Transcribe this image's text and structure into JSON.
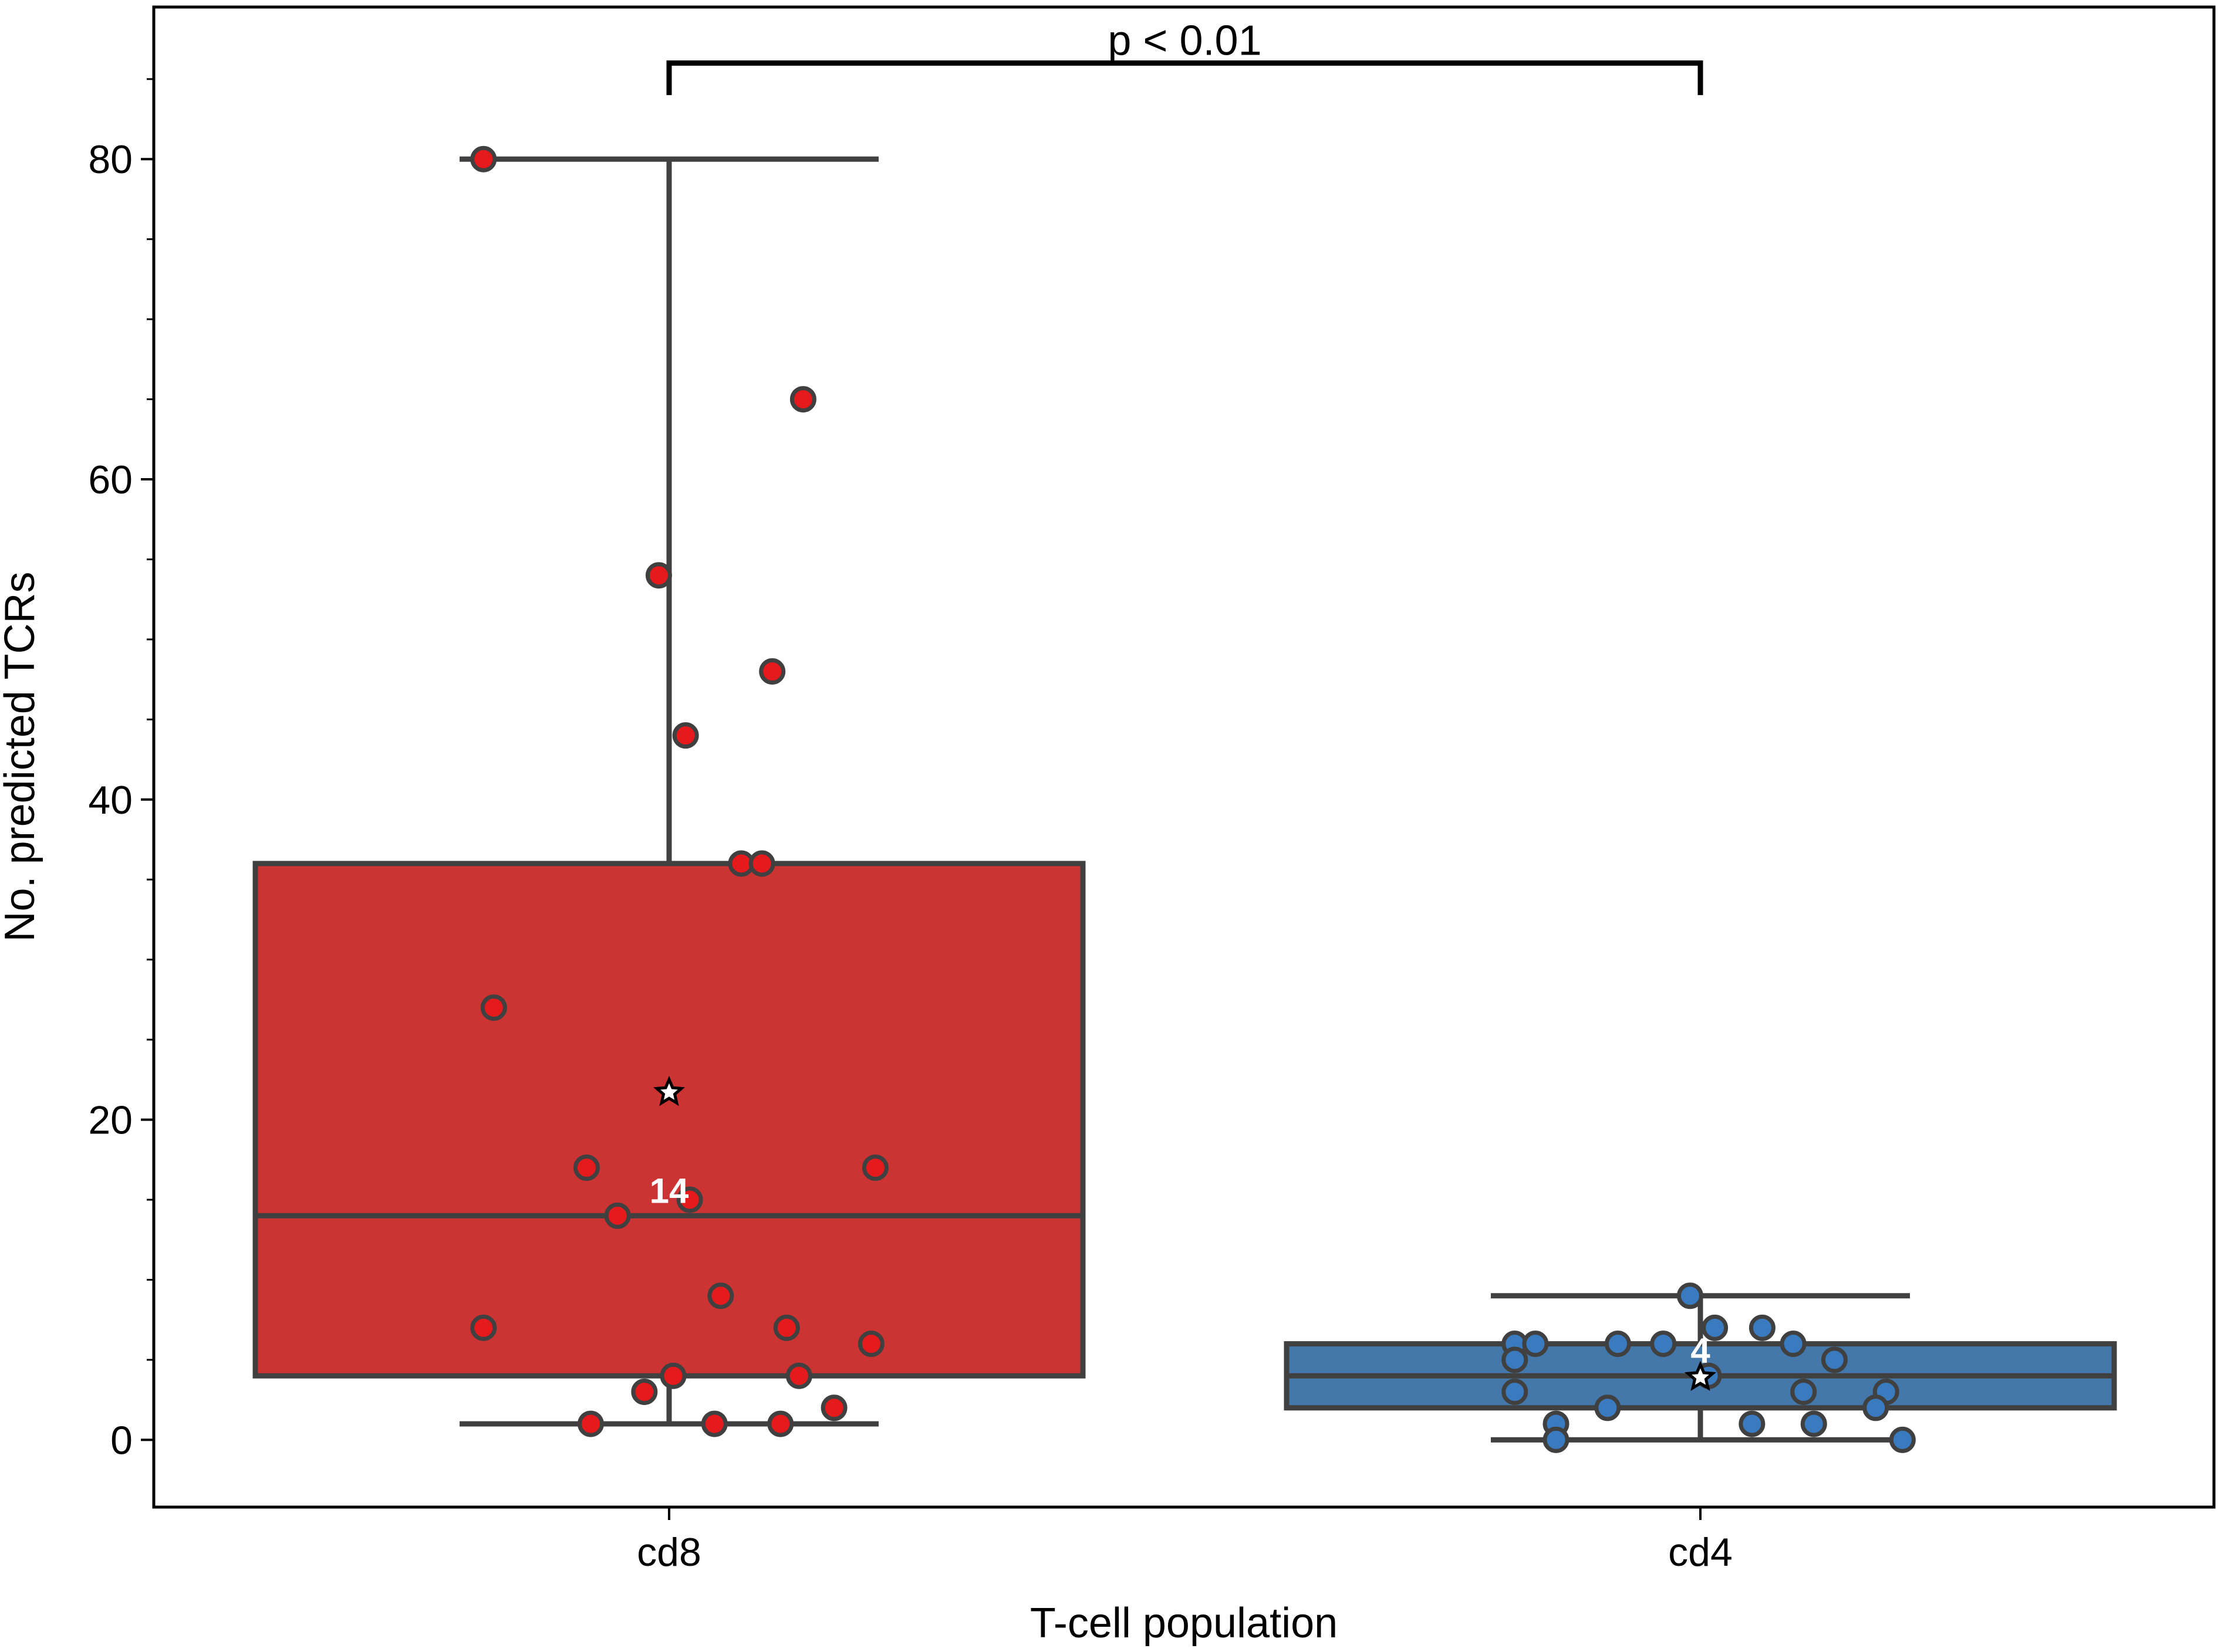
{
  "chart_data": {
    "type": "box",
    "title": "",
    "xlabel": "T-cell population",
    "ylabel": "No. predicted TCRs",
    "ylim": [
      -4.2,
      89.5
    ],
    "yticks": [
      0,
      20,
      40,
      60,
      80
    ],
    "y_minor_tick_step": 5,
    "grid": false,
    "categories": [
      "cd8",
      "cd4"
    ],
    "boxes": [
      {
        "name": "cd8",
        "color": "#cc3333",
        "point_color": "#e41a1c",
        "whisker_low": 1,
        "q1": 4,
        "median": 14,
        "q3": 36,
        "whisker_high": 80,
        "mean": 21.7,
        "median_label": "14",
        "points": [
          {
            "dx": -0.09,
            "y": 80
          },
          {
            "dx": 0.065,
            "y": 65
          },
          {
            "dx": -0.005,
            "y": 54
          },
          {
            "dx": 0.05,
            "y": 48
          },
          {
            "dx": 0.008,
            "y": 44
          },
          {
            "dx": 0.035,
            "y": 36
          },
          {
            "dx": 0.045,
            "y": 36
          },
          {
            "dx": -0.085,
            "y": 27
          },
          {
            "dx": -0.04,
            "y": 17
          },
          {
            "dx": 0.1,
            "y": 17
          },
          {
            "dx": 0.01,
            "y": 15
          },
          {
            "dx": -0.025,
            "y": 14
          },
          {
            "dx": 0.025,
            "y": 9
          },
          {
            "dx": -0.09,
            "y": 7
          },
          {
            "dx": 0.057,
            "y": 7
          },
          {
            "dx": 0.098,
            "y": 6
          },
          {
            "dx": 0.002,
            "y": 4
          },
          {
            "dx": 0.063,
            "y": 4
          },
          {
            "dx": -0.012,
            "y": 3
          },
          {
            "dx": 0.08,
            "y": 2
          },
          {
            "dx": -0.038,
            "y": 1
          },
          {
            "dx": 0.022,
            "y": 1
          },
          {
            "dx": 0.054,
            "y": 1
          }
        ]
      },
      {
        "name": "cd4",
        "color": "#4477aa",
        "point_color": "#3a7bbf",
        "whisker_low": 0,
        "q1": 2,
        "median": 4,
        "q3": 6,
        "whisker_high": 9,
        "mean": 3.9,
        "median_label": "4",
        "points": [
          {
            "dx": -0.005,
            "y": 9
          },
          {
            "dx": 0.007,
            "y": 7
          },
          {
            "dx": 0.03,
            "y": 7
          },
          {
            "dx": -0.09,
            "y": 6
          },
          {
            "dx": -0.08,
            "y": 6
          },
          {
            "dx": -0.04,
            "y": 6
          },
          {
            "dx": -0.018,
            "y": 6
          },
          {
            "dx": 0.045,
            "y": 6
          },
          {
            "dx": -0.09,
            "y": 5
          },
          {
            "dx": 0.065,
            "y": 5
          },
          {
            "dx": 0.004,
            "y": 4
          },
          {
            "dx": -0.09,
            "y": 3
          },
          {
            "dx": 0.05,
            "y": 3
          },
          {
            "dx": 0.09,
            "y": 3
          },
          {
            "dx": -0.045,
            "y": 2
          },
          {
            "dx": 0.085,
            "y": 2
          },
          {
            "dx": -0.07,
            "y": 1
          },
          {
            "dx": 0.025,
            "y": 1
          },
          {
            "dx": 0.055,
            "y": 1
          },
          {
            "dx": -0.07,
            "y": 0
          },
          {
            "dx": 0.098,
            "y": 0
          }
        ]
      }
    ],
    "annotations": [
      {
        "text": "p < 0.01",
        "from": "cd8",
        "to": "cd4",
        "y": 86,
        "y_end": 84
      }
    ]
  }
}
